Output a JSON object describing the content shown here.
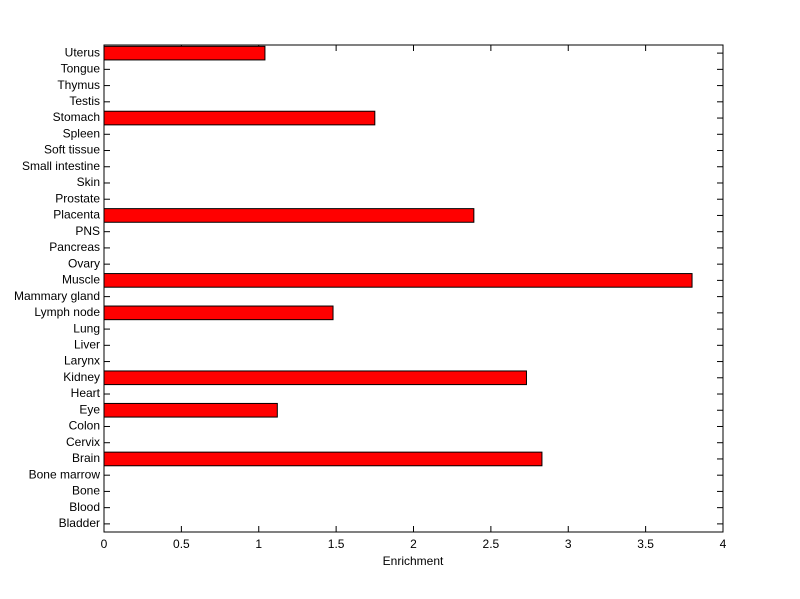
{
  "chart_data": {
    "type": "hbar",
    "xlabel": "Enrichment",
    "categories": [
      "Bladder",
      "Blood",
      "Bone",
      "Bone marrow",
      "Brain",
      "Cervix",
      "Colon",
      "Eye",
      "Heart",
      "Kidney",
      "Larynx",
      "Liver",
      "Lung",
      "Lymph node",
      "Mammary gland",
      "Muscle",
      "Ovary",
      "Pancreas",
      "PNS",
      "Placenta",
      "Prostate",
      "Skin",
      "Small intestine",
      "Soft tissue",
      "Spleen",
      "Stomach",
      "Testis",
      "Thymus",
      "Tongue",
      "Uterus"
    ],
    "values": [
      0,
      0,
      0,
      0,
      2.83,
      0,
      0,
      1.12,
      0,
      2.73,
      0,
      0,
      0,
      1.48,
      0,
      3.8,
      0,
      0,
      0,
      2.39,
      0,
      0,
      0,
      0,
      0,
      1.75,
      0,
      0,
      0,
      1.04
    ],
    "color": "#ff0000",
    "xlim": [
      0,
      4
    ],
    "xticks": [
      0,
      0.5,
      1,
      1.5,
      2,
      2.5,
      3,
      3.5,
      4
    ]
  }
}
